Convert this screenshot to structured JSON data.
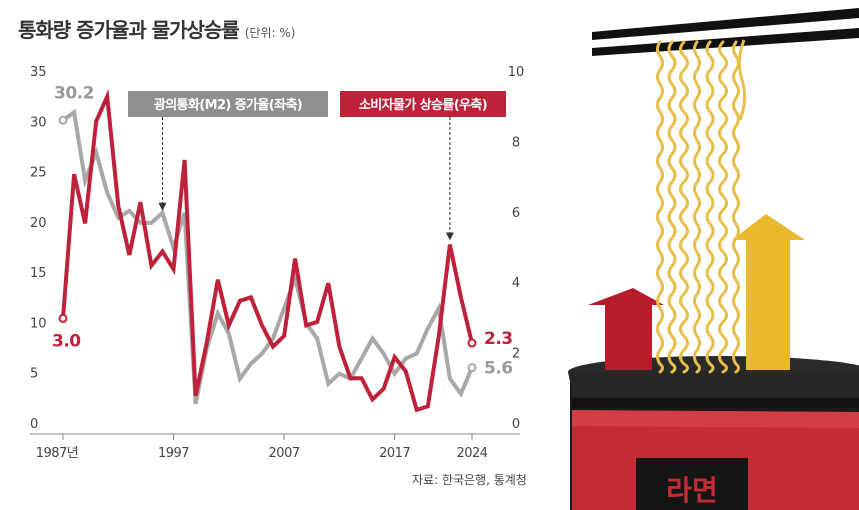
{
  "title": "통화량 증가율과 물가상승률",
  "unit": "(단위: %)",
  "source": "자료: 한국은행, 통계청",
  "illustration": {
    "description_icon": "ramen-cup-icon",
    "cup_text": "라면"
  },
  "colors": {
    "m2": "#a8a8a8",
    "cpi": "#c0213a",
    "arrow_red": "#b71c2c",
    "arrow_yellow": "#e9b92b",
    "noodle": "#e8bf4a"
  },
  "chart_data": {
    "type": "line",
    "x_tick_labels": [
      "1987년",
      "1997",
      "2007",
      "2017",
      "2024"
    ],
    "x_tick_years": [
      1987,
      1997,
      2007,
      2017,
      2024
    ],
    "xlim": [
      1987,
      2024
    ],
    "left_axis": {
      "ylim": [
        0,
        35
      ],
      "ticks": [
        "0",
        "5",
        "10",
        "15",
        "20",
        "25",
        "30",
        "35"
      ]
    },
    "right_axis": {
      "ylim": [
        0,
        10
      ],
      "ticks": [
        "0",
        "2",
        "4",
        "6",
        "8",
        "10"
      ]
    },
    "series": [
      {
        "name": "광의통화(M2) 증가율(좌축)",
        "axis": "left",
        "start_label": "30.2",
        "end_label": "5.6",
        "x": [
          1987,
          1988,
          1989,
          1990,
          1991,
          1992,
          1993,
          1994,
          1995,
          1996,
          1997,
          1998,
          1999,
          2000,
          2001,
          2002,
          2003,
          2004,
          2005,
          2006,
          2007,
          2008,
          2009,
          2010,
          2011,
          2012,
          2013,
          2014,
          2015,
          2016,
          2017,
          2018,
          2019,
          2020,
          2021,
          2022,
          2023,
          2024
        ],
        "values": [
          30.2,
          31.0,
          24.2,
          27.0,
          23.0,
          20.5,
          21.2,
          20.0,
          20.0,
          21.0,
          17.5,
          21.0,
          2.0,
          7.5,
          11.0,
          9.0,
          4.5,
          6.0,
          7.0,
          8.5,
          11.5,
          14.5,
          10.0,
          8.5,
          4.0,
          5.0,
          4.5,
          6.5,
          8.5,
          7.0,
          5.0,
          6.5,
          7.0,
          9.5,
          11.5,
          4.5,
          3.0,
          5.6
        ]
      },
      {
        "name": "소비자물가 상승률(우축)",
        "axis": "right",
        "start_label": "3.0",
        "end_label": "2.3",
        "x": [
          1987,
          1988,
          1989,
          1990,
          1991,
          1992,
          1993,
          1994,
          1995,
          1996,
          1997,
          1998,
          1999,
          2000,
          2001,
          2002,
          2003,
          2004,
          2005,
          2006,
          2007,
          2008,
          2009,
          2010,
          2011,
          2012,
          2013,
          2014,
          2015,
          2016,
          2017,
          2018,
          2019,
          2020,
          2021,
          2022,
          2023,
          2024
        ],
        "values": [
          3.0,
          7.1,
          5.7,
          8.6,
          9.3,
          6.2,
          4.8,
          6.3,
          4.5,
          4.9,
          4.4,
          7.5,
          0.8,
          2.3,
          4.1,
          2.8,
          3.5,
          3.6,
          2.8,
          2.2,
          2.5,
          4.7,
          2.8,
          2.9,
          4.0,
          2.2,
          1.3,
          1.3,
          0.7,
          1.0,
          1.9,
          1.5,
          0.4,
          0.5,
          2.5,
          5.1,
          3.6,
          2.3
        ]
      }
    ],
    "annotations": [
      {
        "text": "광의통화(M2) 증가율(좌축)",
        "series": 0,
        "points_to_x": 1996
      },
      {
        "text": "소비자물가 상승률(우축)",
        "series": 1,
        "points_to_x": 2022
      }
    ]
  }
}
